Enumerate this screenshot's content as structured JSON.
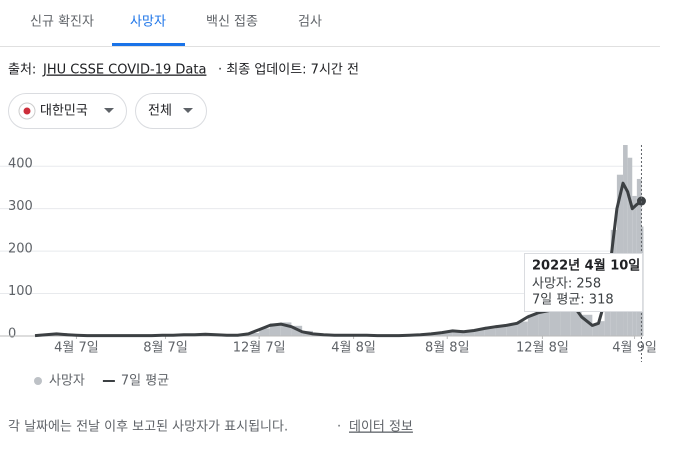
{
  "tabs": [
    "신규 확진자",
    "사망자",
    "백신 접종",
    "검사"
  ],
  "active_tab": 1,
  "source": {
    "prefix": "출처:",
    "link": "JHU CSSE COVID-19 Data",
    "updated": "· 최종 업데이트: 7시간 전"
  },
  "filters": [
    "대한민국",
    "전체"
  ],
  "footer": {
    "note": "각 날짜에는 전날 이후 보고된 사망자가 표시됩니다.",
    "sep": "·",
    "link": "데이터 정보"
  },
  "chart_data": {
    "type": "bar-line",
    "x": [
      -54,
      -40,
      -26,
      -12,
      0,
      14,
      28,
      42,
      56,
      70,
      84,
      98,
      112,
      126,
      140,
      154,
      168,
      182,
      196,
      210,
      224,
      238,
      252,
      266,
      280,
      294,
      308,
      322,
      336,
      350,
      364,
      378,
      392,
      406,
      420,
      434,
      448,
      462,
      476,
      490,
      504,
      518,
      532,
      546,
      560,
      574,
      588,
      602,
      616,
      630,
      644,
      658,
      672,
      680,
      688,
      696,
      704,
      712,
      718,
      724,
      730,
      736
    ],
    "series": [
      {
        "name": "사망자",
        "color": "#bdc1c6",
        "kind": "bar",
        "values": [
          2,
          4,
          7,
          3,
          2,
          1,
          2,
          1,
          1,
          2,
          1,
          1,
          3,
          2,
          4,
          3,
          5,
          3,
          2,
          3,
          7,
          18,
          30,
          32,
          24,
          12,
          6,
          4,
          3,
          2,
          3,
          2,
          1,
          1,
          2,
          3,
          4,
          6,
          10,
          14,
          11,
          16,
          22,
          26,
          28,
          34,
          50,
          62,
          66,
          82,
          90,
          50,
          28,
          35,
          120,
          250,
          380,
          450,
          420,
          330,
          370,
          258
        ]
      },
      {
        "name": "7일 평균",
        "color": "#3c4043",
        "kind": "line",
        "values": [
          1,
          3,
          5,
          3,
          2,
          1,
          1,
          1,
          1,
          1,
          1,
          1,
          2,
          2,
          3,
          3,
          4,
          3,
          2,
          2,
          5,
          15,
          25,
          28,
          22,
          10,
          5,
          3,
          2,
          2,
          2,
          2,
          1,
          1,
          1,
          2,
          3,
          5,
          8,
          12,
          10,
          13,
          18,
          22,
          25,
          30,
          45,
          55,
          60,
          75,
          80,
          45,
          25,
          30,
          80,
          180,
          300,
          360,
          340,
          300,
          310,
          318
        ]
      }
    ],
    "xlim": [
      -54,
      738
    ],
    "xticks": [
      {
        "value": 0,
        "label": "4월 7일"
      },
      {
        "value": 116,
        "label": "8월 7일"
      },
      {
        "value": 238,
        "label": "12월 7일"
      },
      {
        "value": 361,
        "label": "4월 8일"
      },
      {
        "value": 483,
        "label": "8월 8일"
      },
      {
        "value": 607,
        "label": "12월 8일"
      },
      {
        "value": 727,
        "label": "4월 9일"
      }
    ],
    "ylim": [
      0,
      450
    ],
    "yticks": [
      0,
      100,
      200,
      300,
      400
    ],
    "grid": true,
    "tooltip": {
      "date": "2022년 4월 10일",
      "lines": [
        "사망자: 258",
        "7일 평균: 318"
      ]
    }
  }
}
